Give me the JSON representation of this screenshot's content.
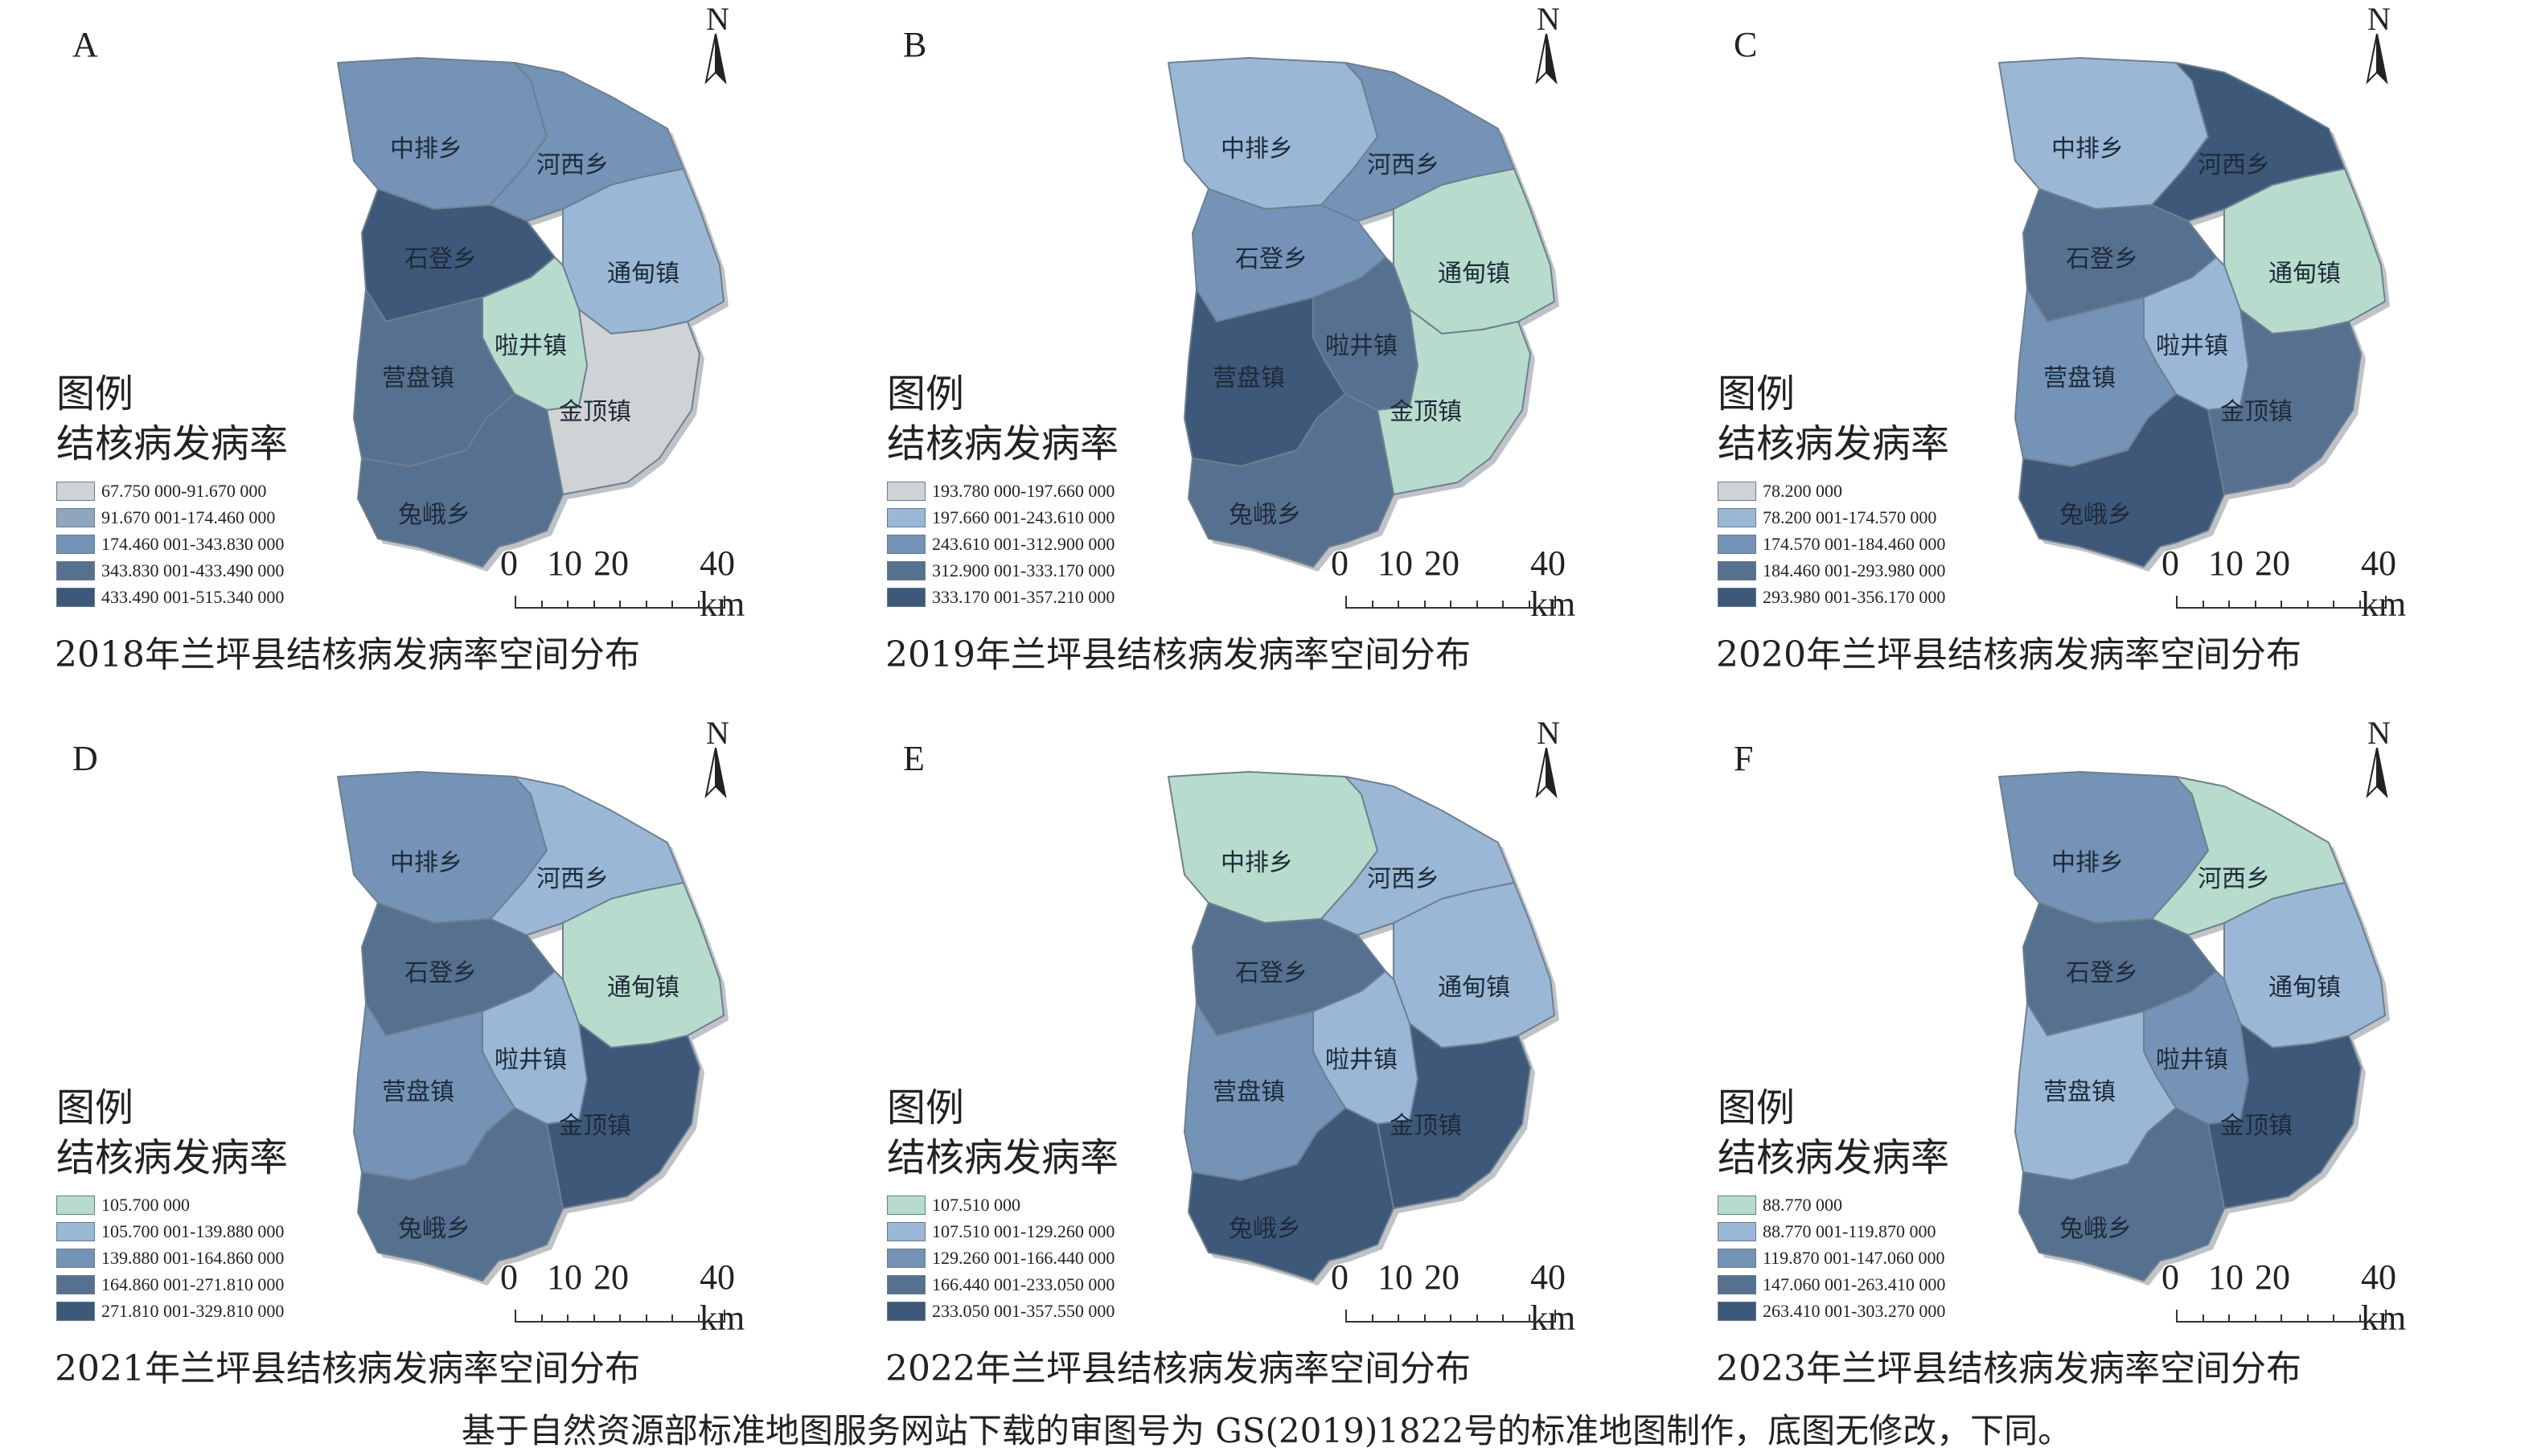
{
  "legend_heading": "图例",
  "legend_subtitle": "结核病发病率",
  "scale_labels": [
    "0",
    "10",
    "20",
    "40 km"
  ],
  "north_label": "N",
  "footer": "基于自然资源部标准地图服务网站下载的审图号为 GS(2019)1822号的标准地图制作，底图无修改，下同。",
  "colors": {
    "c1": "#cfd2d4",
    "c2": "#b7dccd",
    "c3": "#9ab8d6",
    "c4": "#7493b6",
    "c5": "#56708f",
    "c6": "#3d5879",
    "border": "#6f7f8f"
  },
  "regions": [
    "中排乡",
    "河西乡",
    "石登乡",
    "通甸镇",
    "啦井镇",
    "营盘镇",
    "金顶镇",
    "兔峨乡"
  ],
  "panels": [
    {
      "letter": "A",
      "title": "2018年兰坪县结核病发病率空间分布",
      "legend": [
        {
          "label": "67.750 000-91.670 000",
          "color": "#d0d3d5"
        },
        {
          "label": "91.670 001-174.460 000",
          "color": "#8fa7bd"
        },
        {
          "label": "174.460 001-343.830 000",
          "color": "#7493b6"
        },
        {
          "label": "343.830 001-433.490 000",
          "color": "#56708f"
        },
        {
          "label": "433.490 001-515.340 000",
          "color": "#3d5879"
        }
      ],
      "fills": [
        "#7493b6",
        "#7493b6",
        "#3d5879",
        "#9ab8d6",
        "#b7dccd",
        "#56708f",
        "#d0d3d5",
        "#56708f"
      ]
    },
    {
      "letter": "B",
      "title": "2019年兰坪县结核病发病率空间分布",
      "legend": [
        {
          "label": "193.780 000-197.660 000",
          "color": "#d0d3d5"
        },
        {
          "label": "197.660 001-243.610 000",
          "color": "#9ab8d6"
        },
        {
          "label": "243.610 001-312.900 000",
          "color": "#7493b6"
        },
        {
          "label": "312.900 001-333.170 000",
          "color": "#56708f"
        },
        {
          "label": "333.170 001-357.210 000",
          "color": "#3d5879"
        }
      ],
      "fills": [
        "#9ab8d6",
        "#7493b6",
        "#7493b6",
        "#b7dccd",
        "#56708f",
        "#3d5879",
        "#b7dccd",
        "#56708f"
      ]
    },
    {
      "letter": "C",
      "title": "2020年兰坪县结核病发病率空间分布",
      "legend": [
        {
          "label": "78.200 000",
          "color": "#d0d3d5"
        },
        {
          "label": "78.200 001-174.570 000",
          "color": "#9ab8d6"
        },
        {
          "label": "174.570 001-184.460 000",
          "color": "#7493b6"
        },
        {
          "label": "184.460 001-293.980 000",
          "color": "#56708f"
        },
        {
          "label": "293.980 001-356.170 000",
          "color": "#3d5879"
        }
      ],
      "fills": [
        "#9ab8d6",
        "#3d5879",
        "#56708f",
        "#b7dccd",
        "#9ab8d6",
        "#7493b6",
        "#56708f",
        "#3d5879"
      ]
    },
    {
      "letter": "D",
      "title": "2021年兰坪县结核病发病率空间分布",
      "legend": [
        {
          "label": "105.700 000",
          "color": "#b7dccd"
        },
        {
          "label": "105.700 001-139.880 000",
          "color": "#9ab8d6"
        },
        {
          "label": "139.880 001-164.860 000",
          "color": "#7493b6"
        },
        {
          "label": "164.860 001-271.810 000",
          "color": "#56708f"
        },
        {
          "label": "271.810 001-329.810 000",
          "color": "#3d5879"
        }
      ],
      "fills": [
        "#7493b6",
        "#9ab8d6",
        "#56708f",
        "#b7dccd",
        "#9ab8d6",
        "#7493b6",
        "#3d5879",
        "#56708f"
      ]
    },
    {
      "letter": "E",
      "title": "2022年兰坪县结核病发病率空间分布",
      "legend": [
        {
          "label": "107.510 000",
          "color": "#b7dccd"
        },
        {
          "label": "107.510 001-129.260 000",
          "color": "#9ab8d6"
        },
        {
          "label": "129.260 001-166.440 000",
          "color": "#7493b6"
        },
        {
          "label": "166.440 001-233.050 000",
          "color": "#56708f"
        },
        {
          "label": "233.050 001-357.550 000",
          "color": "#3d5879"
        }
      ],
      "fills": [
        "#b7dccd",
        "#9ab8d6",
        "#56708f",
        "#9ab8d6",
        "#9ab8d6",
        "#7493b6",
        "#3d5879",
        "#3d5879"
      ]
    },
    {
      "letter": "F",
      "title": "2023年兰坪县结核病发病率空间分布",
      "legend": [
        {
          "label": "88.770 000",
          "color": "#b7dccd"
        },
        {
          "label": "88.770 001-119.870 000",
          "color": "#9ab8d6"
        },
        {
          "label": "119.870 001-147.060 000",
          "color": "#7493b6"
        },
        {
          "label": "147.060 001-263.410 000",
          "color": "#56708f"
        },
        {
          "label": "263.410 001-303.270 000",
          "color": "#3d5879"
        }
      ],
      "fills": [
        "#7493b6",
        "#b7dccd",
        "#56708f",
        "#9ab8d6",
        "#7493b6",
        "#9ab8d6",
        "#3d5879",
        "#56708f"
      ]
    }
  ]
}
